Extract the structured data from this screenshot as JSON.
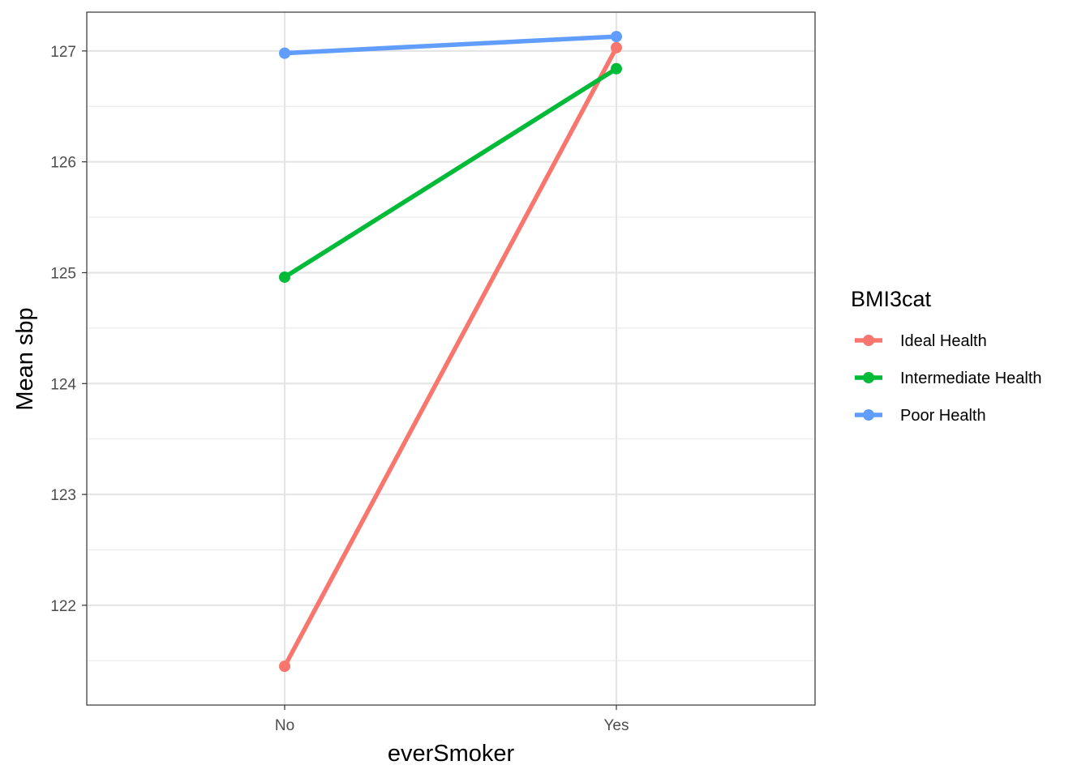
{
  "chart_data": {
    "type": "line",
    "xlabel": "everSmoker",
    "ylabel": "Mean sbp",
    "categories": [
      "No",
      "Yes"
    ],
    "ylim": [
      121.1,
      127.35
    ],
    "yticks": [
      122,
      123,
      124,
      125,
      126,
      127
    ],
    "grid": true,
    "legend": {
      "title": "BMI3cat",
      "position": "right"
    },
    "series": [
      {
        "name": "Ideal Health",
        "color": "#F8766D",
        "values": [
          121.45,
          127.03
        ]
      },
      {
        "name": "Intermediate Health",
        "color": "#00BA38",
        "values": [
          124.96,
          126.84
        ]
      },
      {
        "name": "Poor Health",
        "color": "#619CFF",
        "values": [
          126.98,
          127.13
        ]
      }
    ]
  }
}
